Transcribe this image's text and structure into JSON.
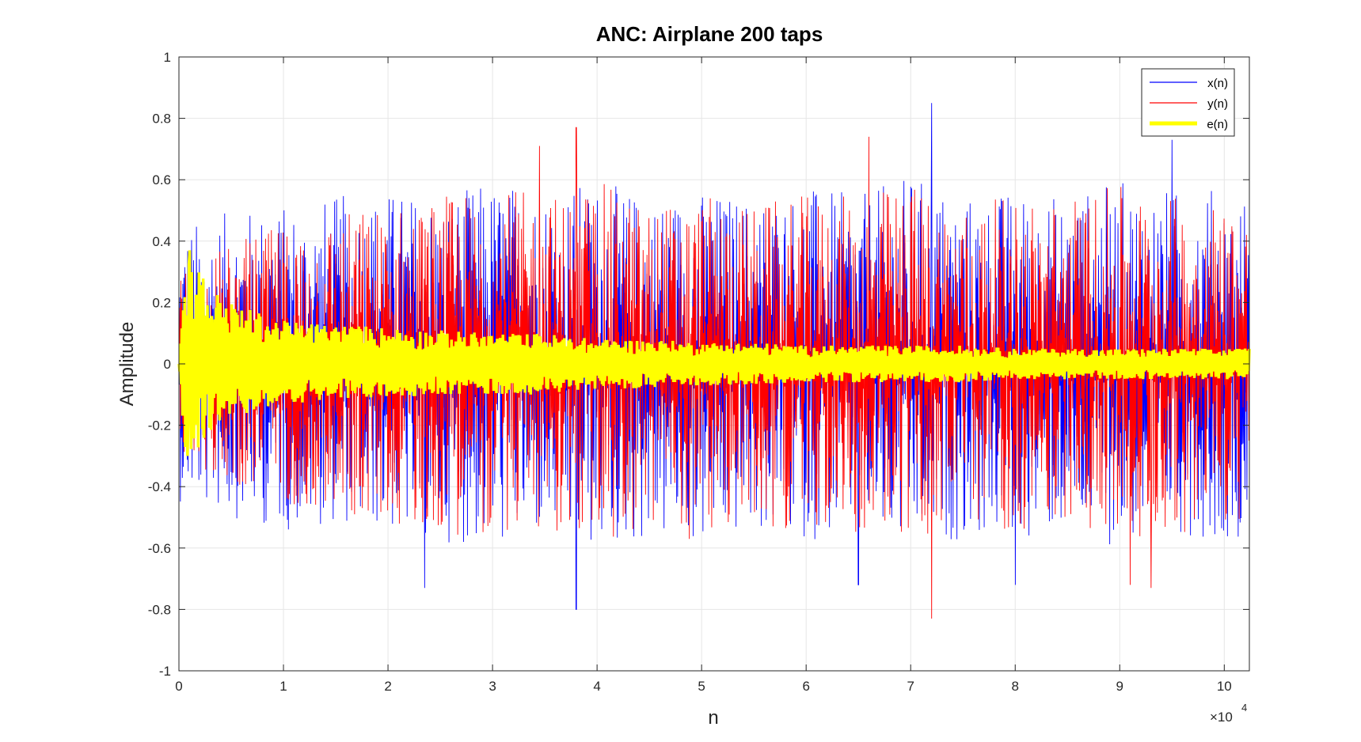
{
  "chart_data": {
    "type": "line",
    "title": "ANC: Airplane 200 taps",
    "xlabel": "n",
    "ylabel": "Amplitude",
    "x_exponent_label": "×10",
    "x_exponent": "4",
    "xlim": [
      0,
      10.24
    ],
    "ylim": [
      -1,
      1
    ],
    "x_scale_factor": 10000,
    "x_ticks": [
      0,
      1,
      2,
      3,
      4,
      5,
      6,
      7,
      8,
      9,
      10
    ],
    "x_tick_labels": [
      "0",
      "1",
      "2",
      "3",
      "4",
      "5",
      "6",
      "7",
      "8",
      "9",
      "10"
    ],
    "y_ticks": [
      -1,
      -0.8,
      -0.6,
      -0.4,
      -0.2,
      0,
      0.2,
      0.4,
      0.6,
      0.8,
      1
    ],
    "y_tick_labels": [
      "-1",
      "-0.8",
      "-0.6",
      "-0.4",
      "-0.2",
      "0",
      "0.2",
      "0.4",
      "0.6",
      "0.8",
      "1"
    ],
    "grid": true,
    "legend_position": "top-right",
    "series": [
      {
        "name": "x(n)",
        "color": "#0000ff",
        "line_width": "thin",
        "envelope_x": [
          0,
          0.5,
          1,
          1.5,
          2,
          2.5,
          3,
          3.5,
          4,
          4.5,
          5,
          5.5,
          6,
          6.5,
          7,
          7.5,
          8,
          8.5,
          9,
          9.5,
          10,
          10.24
        ],
        "envelope_upper": [
          0.45,
          0.5,
          0.52,
          0.55,
          0.57,
          0.55,
          0.6,
          0.58,
          0.6,
          0.55,
          0.57,
          0.55,
          0.58,
          0.55,
          0.62,
          0.55,
          0.57,
          0.55,
          0.6,
          0.57,
          0.58,
          0.55
        ],
        "envelope_lower": [
          -0.45,
          -0.5,
          -0.55,
          -0.52,
          -0.55,
          -0.58,
          -0.6,
          -0.57,
          -0.62,
          -0.58,
          -0.6,
          -0.55,
          -0.58,
          -0.55,
          -0.62,
          -0.57,
          -0.58,
          -0.55,
          -0.6,
          -0.55,
          -0.58,
          -0.55
        ],
        "peaks": [
          [
            7.2,
            0.85
          ],
          [
            3.8,
            -0.8
          ],
          [
            2.35,
            -0.73
          ],
          [
            6.5,
            -0.72
          ],
          [
            9.5,
            0.73
          ],
          [
            8.0,
            -0.72
          ]
        ]
      },
      {
        "name": "y(n)",
        "color": "#ff0000",
        "line_width": "thin",
        "envelope_x": [
          0,
          0.5,
          1,
          1.5,
          2,
          2.5,
          3,
          3.5,
          4,
          4.5,
          5,
          5.5,
          6,
          6.5,
          7,
          7.5,
          8,
          8.5,
          9,
          9.5,
          10,
          10.24
        ],
        "envelope_upper": [
          0.3,
          0.4,
          0.45,
          0.5,
          0.52,
          0.55,
          0.58,
          0.55,
          0.6,
          0.52,
          0.55,
          0.52,
          0.55,
          0.55,
          0.6,
          0.52,
          0.55,
          0.55,
          0.58,
          0.55,
          0.55,
          0.52
        ],
        "envelope_lower": [
          -0.3,
          -0.4,
          -0.45,
          -0.5,
          -0.52,
          -0.55,
          -0.57,
          -0.55,
          -0.6,
          -0.55,
          -0.58,
          -0.52,
          -0.55,
          -0.55,
          -0.6,
          -0.52,
          -0.55,
          -0.52,
          -0.57,
          -0.55,
          -0.55,
          -0.52
        ],
        "peaks": [
          [
            3.8,
            0.77
          ],
          [
            7.2,
            -0.83
          ],
          [
            3.45,
            0.71
          ],
          [
            9.3,
            -0.73
          ],
          [
            6.6,
            0.74
          ],
          [
            9.1,
            -0.72
          ]
        ]
      },
      {
        "name": "e(n)",
        "color": "#ffff00",
        "line_width": "thick",
        "envelope_x": [
          0,
          0.05,
          0.1,
          0.2,
          0.3,
          0.5,
          1,
          1.5,
          2,
          2.5,
          3,
          3.5,
          4,
          4.5,
          5,
          5.5,
          6,
          6.5,
          7,
          7.5,
          8,
          8.5,
          9,
          9.5,
          10,
          10.24
        ],
        "envelope_upper": [
          0,
          0.3,
          0.37,
          0.32,
          0.25,
          0.2,
          0.14,
          0.13,
          0.12,
          0.11,
          0.1,
          0.1,
          0.08,
          0.08,
          0.07,
          0.07,
          0.06,
          0.06,
          0.06,
          0.06,
          0.05,
          0.05,
          0.05,
          0.05,
          0.05,
          0.05
        ],
        "envelope_lower": [
          0,
          -0.28,
          -0.3,
          -0.27,
          -0.22,
          -0.18,
          -0.13,
          -0.12,
          -0.11,
          -0.1,
          -0.1,
          -0.1,
          -0.08,
          -0.08,
          -0.07,
          -0.07,
          -0.06,
          -0.06,
          -0.06,
          -0.06,
          -0.05,
          -0.05,
          -0.05,
          -0.05,
          -0.05,
          -0.05
        ],
        "peaks": [
          [
            0.1,
            0.37
          ],
          [
            0.08,
            -0.3
          ]
        ]
      }
    ]
  }
}
